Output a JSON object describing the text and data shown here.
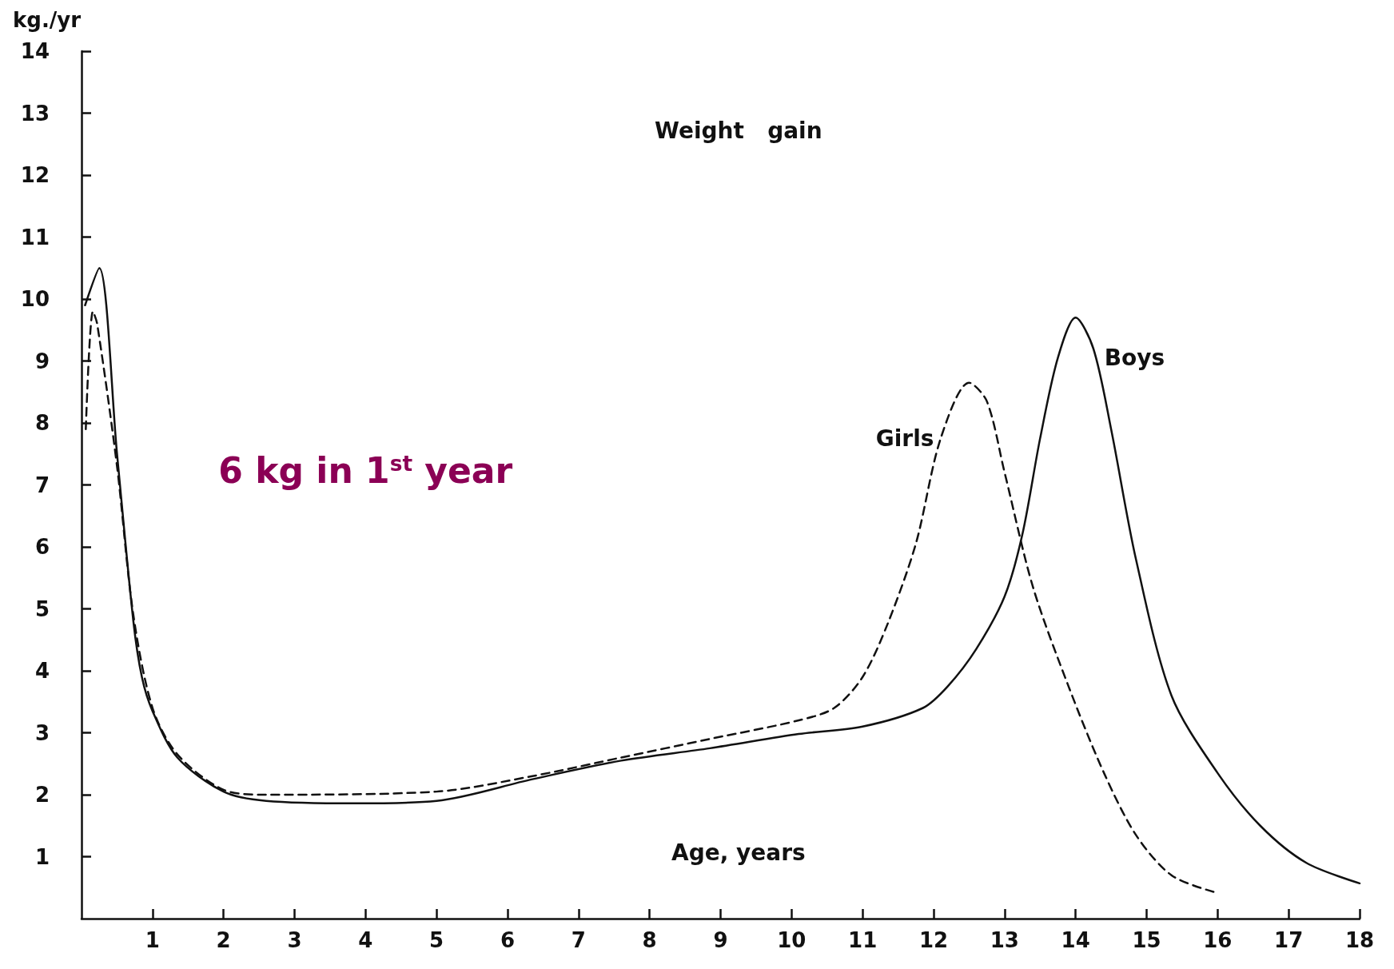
{
  "chart_data": {
    "type": "line",
    "ylabel": "kg./yr",
    "xlim": [
      0,
      18
    ],
    "xticks": [
      1,
      2,
      3,
      4,
      5,
      6,
      7,
      8,
      9,
      10,
      11,
      12,
      13,
      14,
      15,
      16,
      17,
      18
    ],
    "ylim": [
      0,
      14
    ],
    "yticks": [
      1,
      2,
      3,
      4,
      5,
      6,
      7,
      8,
      9,
      10,
      11,
      12,
      13,
      14
    ],
    "grid": false,
    "legend": false,
    "marker": "none",
    "annotations": [
      "Weight   gain",
      "Age, years",
      "6 kg in 1$^{st}$ year"
    ],
    "series": [
      {
        "name": "Boys",
        "color": "#111111",
        "line_style": "solid",
        "x": [
          0.05,
          0.25,
          0.5,
          0.73,
          0.85,
          1,
          1.35,
          2,
          2.6,
          3.85,
          5,
          6.35,
          7.6,
          8.85,
          10.1,
          11,
          11.85,
          12.2,
          12.6,
          13,
          13.25,
          13.5,
          13.75,
          14,
          14.25,
          14.5,
          14.85,
          15.35,
          16,
          16.6,
          17.25,
          18
        ],
        "values": [
          9.9,
          10.5,
          7.5,
          4.8,
          3.9,
          3.35,
          2.6,
          2.05,
          1.9,
          1.86,
          1.9,
          2.25,
          2.55,
          2.75,
          2.98,
          3.1,
          3.4,
          3.75,
          4.35,
          5.2,
          6.2,
          7.75,
          9.05,
          9.7,
          9.2,
          7.9,
          5.8,
          3.6,
          2.35,
          1.5,
          0.9,
          0.57
        ]
      },
      {
        "name": "Girls",
        "color": "#111111",
        "line_style": "dashed",
        "x": [
          0.06,
          0.16,
          0.22,
          0.5,
          0.73,
          1,
          1.35,
          2,
          2.6,
          5,
          6.35,
          7.6,
          8.85,
          10.1,
          10.6,
          11,
          11.35,
          11.75,
          12.1,
          12.5,
          12.75,
          13,
          13.4,
          13.9,
          14.4,
          14.85,
          15.35,
          15.95
        ],
        "values": [
          7.9,
          9.8,
          9.6,
          7.3,
          4.9,
          3.4,
          2.65,
          2.08,
          2.0,
          2.05,
          2.3,
          2.6,
          2.9,
          3.2,
          3.4,
          3.9,
          4.75,
          6.05,
          7.75,
          8.65,
          8.35,
          7.2,
          5.35,
          3.75,
          2.35,
          1.35,
          0.7,
          0.43
        ]
      }
    ]
  }
}
